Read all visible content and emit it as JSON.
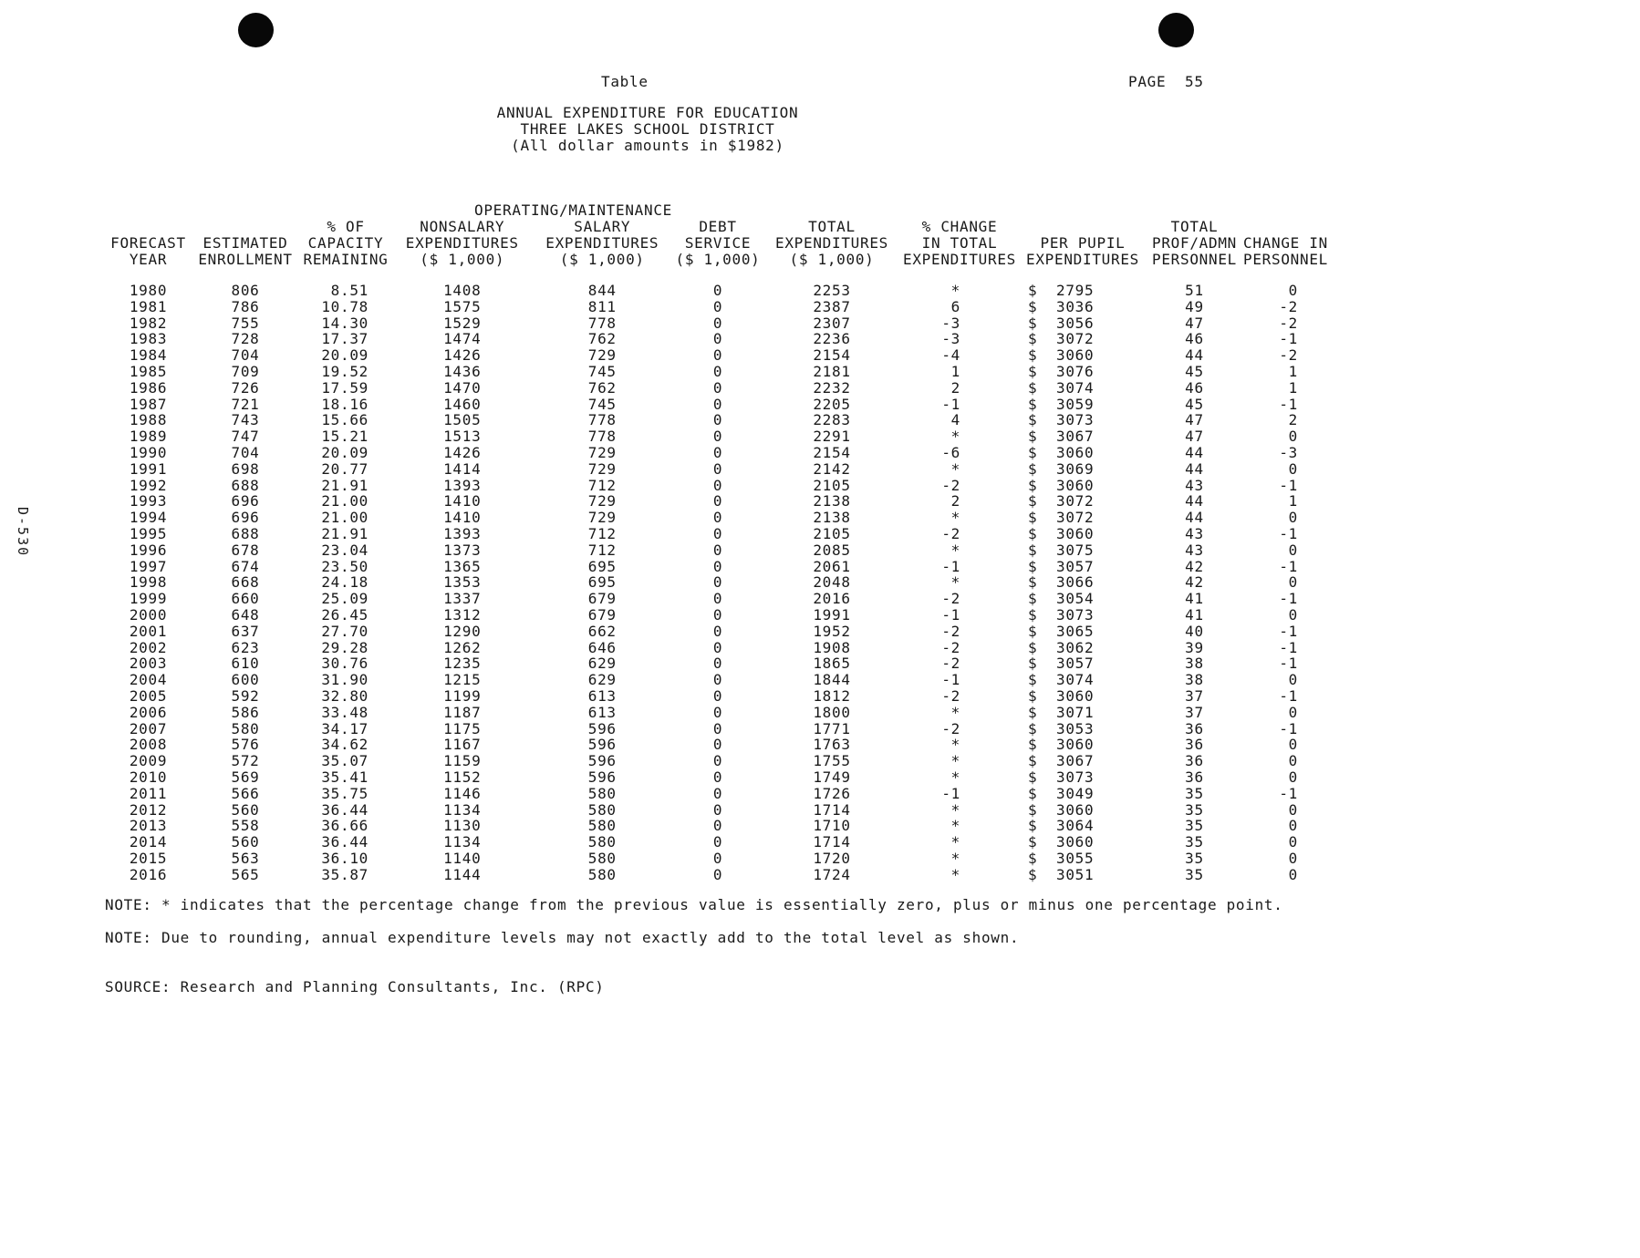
{
  "page": {
    "corner_label": "Table",
    "page_label": "PAGE  55",
    "titles": [
      "ANNUAL EXPENDITURE FOR EDUCATION",
      "THREE LAKES SCHOOL DISTRICT",
      "(All dollar amounts in $1982)"
    ],
    "side_label": "D-530"
  },
  "table": {
    "group_header": "OPERATING/MAINTENANCE",
    "currency_symbol": "$",
    "column_keys": [
      "forecast-year",
      "estimated-enrollment",
      "capacity-remaining-pct",
      "nonsalary-expenditures",
      "salary-expenditures",
      "debt-service",
      "total-expenditures",
      "pct-change-total-expenditures",
      "per-pupil-expenditures",
      "total-prof-admn-personnel",
      "change-in-personnel"
    ],
    "headers": [
      [
        "FORECAST",
        "YEAR"
      ],
      [
        "ESTIMATED",
        "ENROLLMENT"
      ],
      [
        "% OF",
        "CAPACITY",
        "REMAINING"
      ],
      [
        "NONSALARY",
        "EXPENDITURES",
        "($ 1,000)"
      ],
      [
        "SALARY",
        "EXPENDITURES",
        "($ 1,000)"
      ],
      [
        "DEBT",
        "SERVICE",
        "($ 1,000)"
      ],
      [
        "TOTAL",
        "EXPENDITURES",
        "($ 1,000)"
      ],
      [
        "% CHANGE",
        "IN TOTAL",
        "EXPENDITURES"
      ],
      [
        "PER PUPIL",
        "EXPENDITURES"
      ],
      [
        "TOTAL",
        "PROF/ADMN",
        "PERSONNEL"
      ],
      [
        "CHANGE IN",
        "PERSONNEL"
      ]
    ],
    "rows": [
      [
        "1980",
        "806",
        "8.51",
        "1408",
        "844",
        "0",
        "2253",
        "*",
        "2795",
        "51",
        "0"
      ],
      [
        "1981",
        "786",
        "10.78",
        "1575",
        "811",
        "0",
        "2387",
        "6",
        "3036",
        "49",
        "-2"
      ],
      [
        "1982",
        "755",
        "14.30",
        "1529",
        "778",
        "0",
        "2307",
        "-3",
        "3056",
        "47",
        "-2"
      ],
      [
        "1983",
        "728",
        "17.37",
        "1474",
        "762",
        "0",
        "2236",
        "-3",
        "3072",
        "46",
        "-1"
      ],
      [
        "1984",
        "704",
        "20.09",
        "1426",
        "729",
        "0",
        "2154",
        "-4",
        "3060",
        "44",
        "-2"
      ],
      [
        "1985",
        "709",
        "19.52",
        "1436",
        "745",
        "0",
        "2181",
        "1",
        "3076",
        "45",
        "1"
      ],
      [
        "1986",
        "726",
        "17.59",
        "1470",
        "762",
        "0",
        "2232",
        "2",
        "3074",
        "46",
        "1"
      ],
      [
        "1987",
        "721",
        "18.16",
        "1460",
        "745",
        "0",
        "2205",
        "-1",
        "3059",
        "45",
        "-1"
      ],
      [
        "1988",
        "743",
        "15.66",
        "1505",
        "778",
        "0",
        "2283",
        "4",
        "3073",
        "47",
        "2"
      ],
      [
        "1989",
        "747",
        "15.21",
        "1513",
        "778",
        "0",
        "2291",
        "*",
        "3067",
        "47",
        "0"
      ],
      [
        "1990",
        "704",
        "20.09",
        "1426",
        "729",
        "0",
        "2154",
        "-6",
        "3060",
        "44",
        "-3"
      ],
      [
        "1991",
        "698",
        "20.77",
        "1414",
        "729",
        "0",
        "2142",
        "*",
        "3069",
        "44",
        "0"
      ],
      [
        "1992",
        "688",
        "21.91",
        "1393",
        "712",
        "0",
        "2105",
        "-2",
        "3060",
        "43",
        "-1"
      ],
      [
        "1993",
        "696",
        "21.00",
        "1410",
        "729",
        "0",
        "2138",
        "2",
        "3072",
        "44",
        "1"
      ],
      [
        "1994",
        "696",
        "21.00",
        "1410",
        "729",
        "0",
        "2138",
        "*",
        "3072",
        "44",
        "0"
      ],
      [
        "1995",
        "688",
        "21.91",
        "1393",
        "712",
        "0",
        "2105",
        "-2",
        "3060",
        "43",
        "-1"
      ],
      [
        "1996",
        "678",
        "23.04",
        "1373",
        "712",
        "0",
        "2085",
        "*",
        "3075",
        "43",
        "0"
      ],
      [
        "1997",
        "674",
        "23.50",
        "1365",
        "695",
        "0",
        "2061",
        "-1",
        "3057",
        "42",
        "-1"
      ],
      [
        "1998",
        "668",
        "24.18",
        "1353",
        "695",
        "0",
        "2048",
        "*",
        "3066",
        "42",
        "0"
      ],
      [
        "1999",
        "660",
        "25.09",
        "1337",
        "679",
        "0",
        "2016",
        "-2",
        "3054",
        "41",
        "-1"
      ],
      [
        "2000",
        "648",
        "26.45",
        "1312",
        "679",
        "0",
        "1991",
        "-1",
        "3073",
        "41",
        "0"
      ],
      [
        "2001",
        "637",
        "27.70",
        "1290",
        "662",
        "0",
        "1952",
        "-2",
        "3065",
        "40",
        "-1"
      ],
      [
        "2002",
        "623",
        "29.28",
        "1262",
        "646",
        "0",
        "1908",
        "-2",
        "3062",
        "39",
        "-1"
      ],
      [
        "2003",
        "610",
        "30.76",
        "1235",
        "629",
        "0",
        "1865",
        "-2",
        "3057",
        "38",
        "-1"
      ],
      [
        "2004",
        "600",
        "31.90",
        "1215",
        "629",
        "0",
        "1844",
        "-1",
        "3074",
        "38",
        "0"
      ],
      [
        "2005",
        "592",
        "32.80",
        "1199",
        "613",
        "0",
        "1812",
        "-2",
        "3060",
        "37",
        "-1"
      ],
      [
        "2006",
        "586",
        "33.48",
        "1187",
        "613",
        "0",
        "1800",
        "*",
        "3071",
        "37",
        "0"
      ],
      [
        "2007",
        "580",
        "34.17",
        "1175",
        "596",
        "0",
        "1771",
        "-2",
        "3053",
        "36",
        "-1"
      ],
      [
        "2008",
        "576",
        "34.62",
        "1167",
        "596",
        "0",
        "1763",
        "*",
        "3060",
        "36",
        "0"
      ],
      [
        "2009",
        "572",
        "35.07",
        "1159",
        "596",
        "0",
        "1755",
        "*",
        "3067",
        "36",
        "0"
      ],
      [
        "2010",
        "569",
        "35.41",
        "1152",
        "596",
        "0",
        "1749",
        "*",
        "3073",
        "36",
        "0"
      ],
      [
        "2011",
        "566",
        "35.75",
        "1146",
        "580",
        "0",
        "1726",
        "-1",
        "3049",
        "35",
        "-1"
      ],
      [
        "2012",
        "560",
        "36.44",
        "1134",
        "580",
        "0",
        "1714",
        "*",
        "3060",
        "35",
        "0"
      ],
      [
        "2013",
        "558",
        "36.66",
        "1130",
        "580",
        "0",
        "1710",
        "*",
        "3064",
        "35",
        "0"
      ],
      [
        "2014",
        "560",
        "36.44",
        "1134",
        "580",
        "0",
        "1714",
        "*",
        "3060",
        "35",
        "0"
      ],
      [
        "2015",
        "563",
        "36.10",
        "1140",
        "580",
        "0",
        "1720",
        "*",
        "3055",
        "35",
        "0"
      ],
      [
        "2016",
        "565",
        "35.87",
        "1144",
        "580",
        "0",
        "1724",
        "*",
        "3051",
        "35",
        "0"
      ]
    ]
  },
  "notes": [
    "NOTE: * indicates that the percentage change from the previous value is essentially zero, plus or minus one percentage point.",
    "NOTE: Due to rounding, annual expenditure levels may not exactly add to the total level as shown."
  ],
  "source": "SOURCE: Research and Planning Consultants, Inc. (RPC)"
}
